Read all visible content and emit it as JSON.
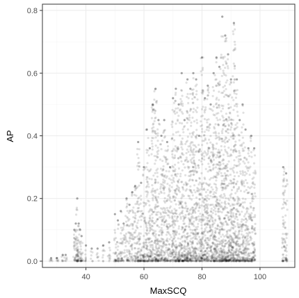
{
  "chart_data": {
    "type": "scatter",
    "xlabel": "MaxSCQ",
    "ylabel": "AP",
    "xlim": [
      25,
      112
    ],
    "ylim": [
      -0.02,
      0.82
    ],
    "x_ticks": [
      40,
      60,
      80,
      100
    ],
    "x_tick_labels": [
      "40",
      "60",
      "80",
      "100"
    ],
    "y_ticks": [
      0.0,
      0.2,
      0.4,
      0.6,
      0.8
    ],
    "y_tick_labels": [
      "0.0",
      "0.2",
      "0.4",
      "0.6",
      "0.8"
    ],
    "grid": true,
    "legend": "none",
    "point_color": "#000000",
    "point_alpha": 0.12,
    "series": [
      {
        "x": [
          28,
          30,
          32,
          33,
          36,
          36.5,
          37,
          37.5,
          38,
          38.5,
          40,
          42,
          44,
          46,
          48,
          50,
          51,
          52,
          53,
          54,
          55,
          56,
          57,
          58,
          59,
          60,
          61,
          62,
          63,
          64,
          65,
          66,
          67,
          68,
          69,
          70,
          71,
          72,
          73,
          74,
          75,
          76,
          77,
          78,
          79,
          80,
          81,
          82,
          83,
          84,
          85,
          86,
          87,
          88,
          89,
          90,
          91,
          92,
          93,
          94,
          95,
          96,
          97,
          98,
          108,
          109
        ],
        "y_max": [
          0.01,
          0.01,
          0.02,
          0.02,
          0.1,
          0.12,
          0.2,
          0.12,
          0.1,
          0.08,
          0.05,
          0.04,
          0.04,
          0.05,
          0.06,
          0.15,
          0.13,
          0.16,
          0.12,
          0.2,
          0.18,
          0.22,
          0.24,
          0.38,
          0.25,
          0.3,
          0.42,
          0.36,
          0.5,
          0.55,
          0.45,
          0.4,
          0.45,
          0.38,
          0.3,
          0.52,
          0.55,
          0.5,
          0.6,
          0.45,
          0.58,
          0.55,
          0.6,
          0.58,
          0.4,
          0.65,
          0.52,
          0.56,
          0.5,
          0.6,
          0.65,
          0.62,
          0.78,
          0.72,
          0.66,
          0.58,
          0.76,
          0.58,
          0.45,
          0.5,
          0.42,
          0.36,
          0.4,
          0.36,
          0.3,
          0.28
        ]
      }
    ]
  }
}
